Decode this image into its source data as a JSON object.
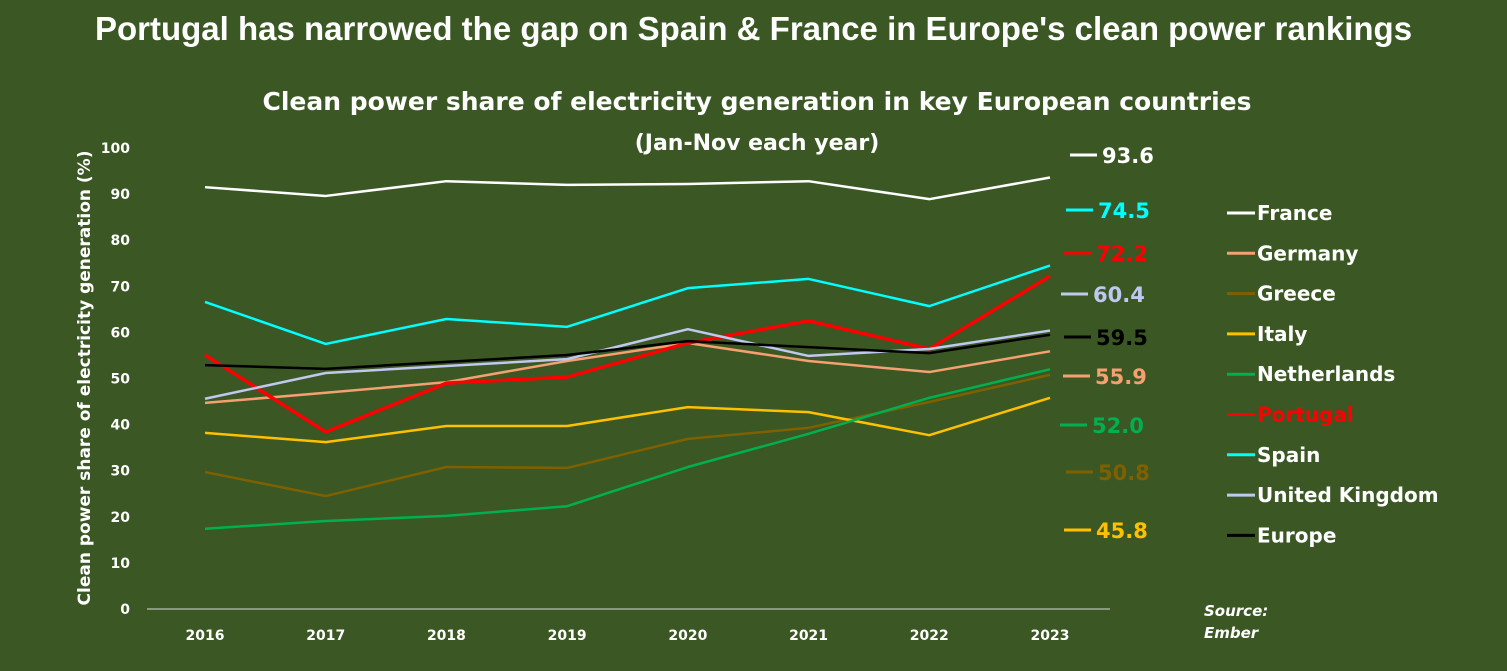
{
  "title": "Portugal has narrowed the gap on Spain & France in Europe's clean power rankings",
  "chart_data": {
    "type": "line",
    "title": "Clean power share of electricity generation in key European countries",
    "subtitle": "(Jan-Nov each year)",
    "ylabel": "Clean power share of electricity generation (%)",
    "xlabel": "",
    "ylim": [
      0,
      100
    ],
    "yticks": [
      0,
      10,
      20,
      30,
      40,
      50,
      60,
      70,
      80,
      90,
      100
    ],
    "categories": [
      "2016",
      "2017",
      "2018",
      "2019",
      "2020",
      "2021",
      "2022",
      "2023"
    ],
    "grid": false,
    "legend_placement": "right",
    "series": [
      {
        "name": "France",
        "color": "#ffffff",
        "values": [
          91.5,
          89.6,
          92.8,
          92.0,
          92.2,
          92.8,
          88.9,
          93.6
        ],
        "end_label": "93.6"
      },
      {
        "name": "Germany",
        "color": "#f4a070",
        "values": [
          44.7,
          46.9,
          49.2,
          53.8,
          57.7,
          53.8,
          51.4,
          55.9
        ],
        "end_label": "55.9"
      },
      {
        "name": "Greece",
        "color": "#7f6000",
        "values": [
          29.7,
          24.5,
          30.8,
          30.6,
          36.9,
          39.3,
          44.9,
          50.8
        ],
        "end_label": "50.8"
      },
      {
        "name": "Italy",
        "color": "#ffc000",
        "values": [
          38.2,
          36.2,
          39.7,
          39.7,
          43.8,
          42.7,
          37.7,
          45.8
        ],
        "end_label": "45.8"
      },
      {
        "name": "Netherlands",
        "color": "#00b050",
        "values": [
          17.4,
          19.1,
          20.2,
          22.3,
          30.8,
          38.0,
          45.8,
          52.0
        ],
        "end_label": "52.0"
      },
      {
        "name": "Portugal",
        "color": "#ff0000",
        "values": [
          55.1,
          38.4,
          49.0,
          50.3,
          57.7,
          62.5,
          56.4,
          72.2
        ],
        "end_label": "72.2"
      },
      {
        "name": "Spain",
        "color": "#00ffff",
        "values": [
          66.6,
          57.5,
          62.9,
          61.2,
          69.6,
          71.6,
          65.7,
          74.5
        ],
        "end_label": "74.5"
      },
      {
        "name": "United Kingdom",
        "color": "#c0c8f0",
        "values": [
          45.6,
          51.2,
          52.7,
          54.2,
          60.7,
          54.9,
          56.4,
          60.4
        ],
        "end_label": "60.4"
      },
      {
        "name": "Europe",
        "color": "#000000",
        "values": [
          52.9,
          52.1,
          53.6,
          55.1,
          58.1,
          56.8,
          55.5,
          59.5
        ],
        "end_label": "59.5"
      }
    ],
    "source": [
      "Source:",
      "Ember"
    ]
  }
}
